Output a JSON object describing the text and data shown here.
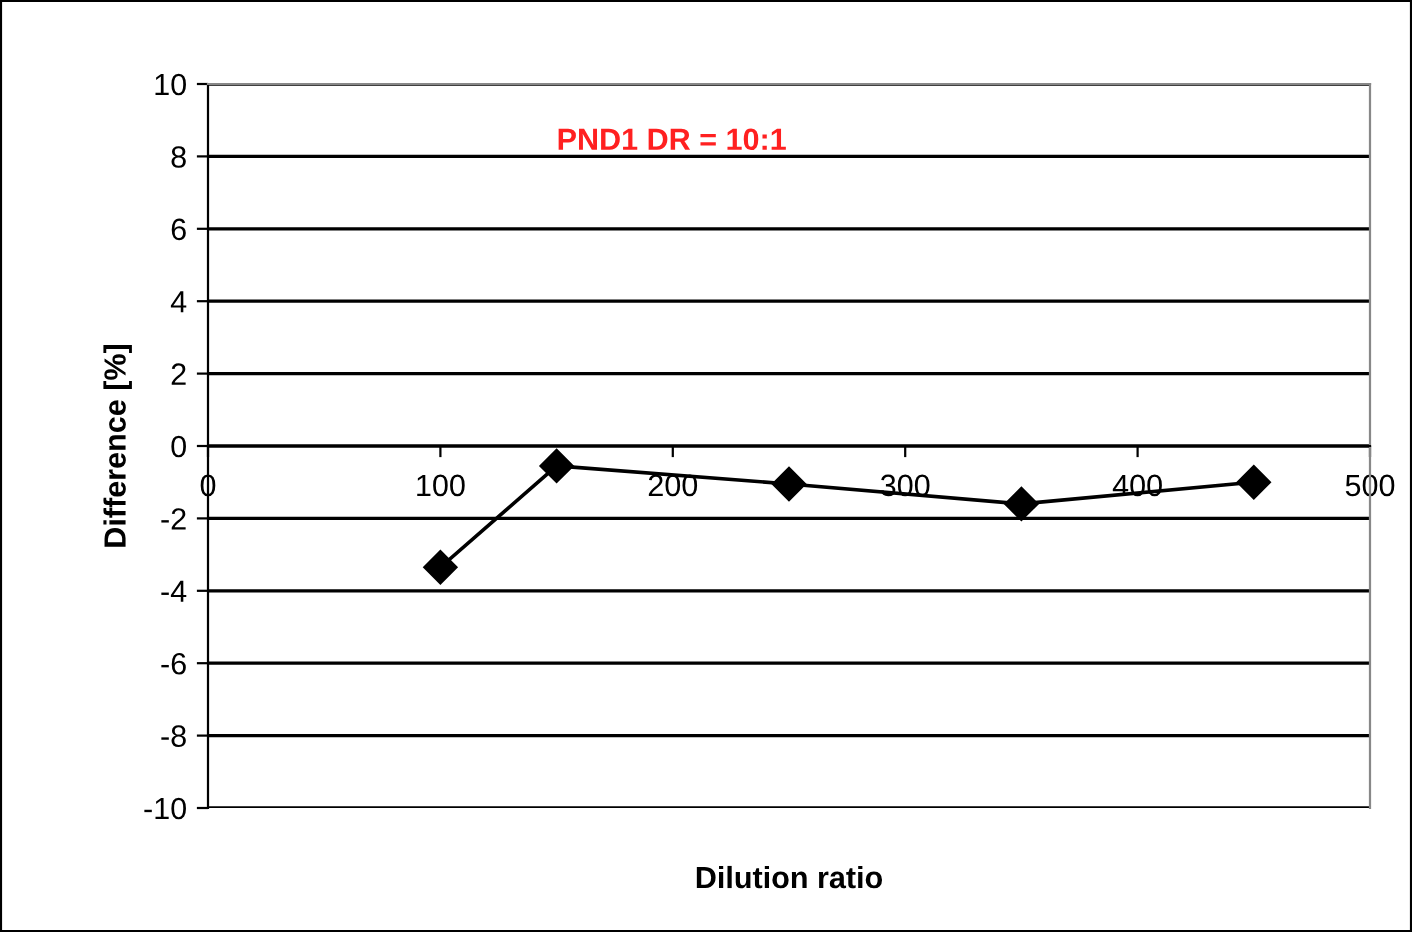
{
  "chart_data": {
    "type": "line",
    "xlabel": "Dilution ratio",
    "ylabel": "Difference [%]",
    "annotations": [
      "PND1 DR = 10:1"
    ],
    "x": [
      100,
      150,
      250,
      350,
      450
    ],
    "series": [
      {
        "color": "#000000",
        "values": [
          -3.35,
          -0.55,
          -1.05,
          -1.6,
          -1.0
        ]
      }
    ],
    "xlim": [
      0,
      500
    ],
    "xticks": [
      0,
      100,
      200,
      300,
      400,
      500
    ],
    "ylim": [
      -10,
      10
    ],
    "yticks": [
      -10,
      -8,
      -6,
      -4,
      -2,
      0,
      2,
      4,
      6,
      8,
      10
    ],
    "grid": "y",
    "marker": "diamond",
    "line_style": "solid"
  }
}
